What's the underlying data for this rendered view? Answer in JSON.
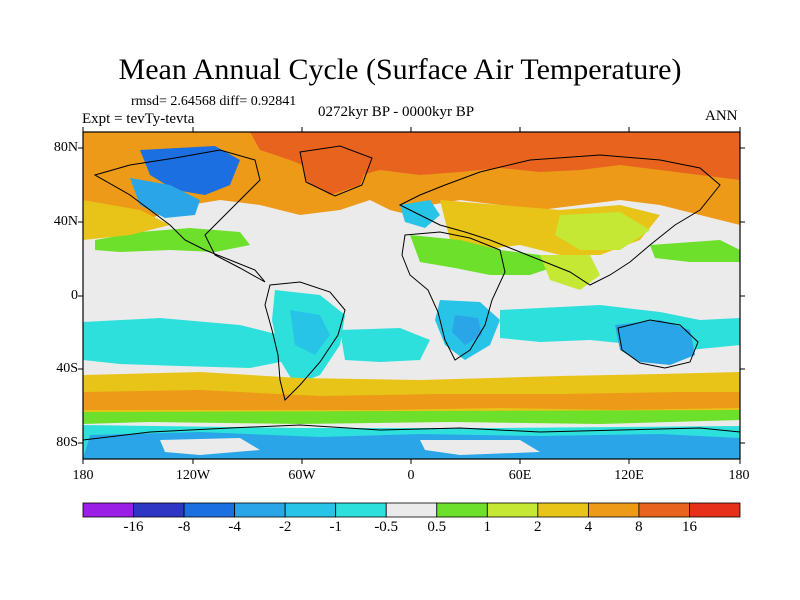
{
  "title": "Mean Annual Cycle (Surface Air Temperature)",
  "stats_text": "rmsd= 2.64568 diff= 0.92841",
  "experiment_text": "Expt = tevTy-tevta",
  "period_text": "0272kyr BP - 0000kyr BP",
  "season_text": "ANN",
  "y_ticks": [
    "80N",
    "40N",
    "0",
    "40S",
    "80S"
  ],
  "x_ticks": [
    "180",
    "120W",
    "60W",
    "0",
    "60E",
    "120E",
    "180"
  ],
  "colorbar": {
    "labels": [
      "-16",
      "-8",
      "-4",
      "-2",
      "-1",
      "-0.5",
      "0.5",
      "1",
      "2",
      "4",
      "8",
      "16"
    ],
    "colors": [
      "#9a1ee6",
      "#2f36c4",
      "#1c6fe0",
      "#2aa6e8",
      "#27c4e8",
      "#2ee0dc",
      "#ebebeb",
      "#6ce02a",
      "#c4e834",
      "#e8c418",
      "#ec9a18",
      "#e8641e",
      "#e6301a"
    ]
  },
  "colors": {
    "ocean_neutral": "#ebebeb",
    "warm_strong": "#e8641e",
    "warm": "#ec9a18",
    "mild_warm": "#e8c418",
    "slight_warm": "#c4e834",
    "green": "#6ce02a",
    "cool_slight": "#2ee0dc",
    "cool": "#27c4e8",
    "cool_mid": "#2aa6e8",
    "cold": "#1c6fe0",
    "coastline": "#000000"
  }
}
